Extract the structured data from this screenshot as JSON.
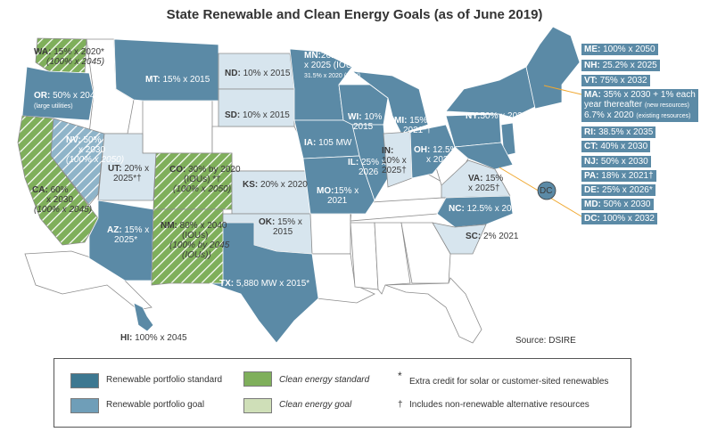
{
  "title": "State Renewable and Clean Energy Goals (as of June 2019)",
  "source": "Source: DSIRE",
  "colors": {
    "rps": "#3d7891",
    "rps_goal": "#6f9eb8",
    "ces": "#7faf5b",
    "ces_goal": "#cfdfb8",
    "no_policy": "#ffffff",
    "state_fill_main": "#5b8aa6",
    "state_fill_light": "#d7e5ee",
    "connector": "#f0a830"
  },
  "states": {
    "WA": {
      "abbr": "WA:",
      "text": "15% x 2020*",
      "text2": "(100% x 2045)"
    },
    "OR": {
      "abbr": "OR:",
      "text": "50% x 2040*",
      "text2": "(large utilities)"
    },
    "CA": {
      "abbr": "CA:",
      "text": "60%",
      "text2": "x 2030",
      "text3": "(100% x 2045)"
    },
    "NV": {
      "abbr": "NV:",
      "text": "50%",
      "text2": "x 2030",
      "text3": "(100% x 2050)"
    },
    "MT": {
      "abbr": "MT:",
      "text": "15% x 2015"
    },
    "UT": {
      "abbr": "UT:",
      "text": "20% x",
      "text2": "2025*†"
    },
    "CO": {
      "abbr": "CO:",
      "text": "30% by 2020",
      "text2": "(IOUs) *†",
      "text3": "(100% x 2050)"
    },
    "AZ": {
      "abbr": "AZ:",
      "text": "15% x",
      "text2": "2025*"
    },
    "NM": {
      "abbr": "NM:",
      "text": "80% x 2040",
      "text2": "(IOUs)",
      "text3": "(100% by 2045",
      "text4": "(IOUs))"
    },
    "ND": {
      "abbr": "ND:",
      "text": "10% x 2015"
    },
    "SD": {
      "abbr": "SD:",
      "text": "10% x 2015"
    },
    "KS": {
      "abbr": "KS:",
      "text": "20% x 2020"
    },
    "OK": {
      "abbr": "OK:",
      "text": "15% x",
      "text2": "2015"
    },
    "TX": {
      "abbr": "TX:",
      "text": "5,880 MW x 2015*"
    },
    "MN": {
      "abbr": "MN:",
      "text": "26.5%",
      "text2": "x 2025 (IOUs)",
      "text3": "31.5% x 2020 (Xcel)"
    },
    "IA": {
      "abbr": "IA:",
      "text": "105 MW"
    },
    "MO": {
      "abbr": "MO:",
      "text": "15% x",
      "text2": "2021"
    },
    "WI": {
      "abbr": "WI:",
      "text": "10%",
      "text2": "2015"
    },
    "IL": {
      "abbr": "IL:",
      "text": "25% x",
      "text2": "2026"
    },
    "MI": {
      "abbr": "MI:",
      "text": "15% x",
      "text2": "2021*†"
    },
    "IN": {
      "abbr": "IN:",
      "text": "10% x",
      "text2": "2025†"
    },
    "OH": {
      "abbr": "OH:",
      "text": "12.5%",
      "text2": "x 2026"
    },
    "NY": {
      "abbr": "NY:",
      "text": "50% x 2030"
    },
    "VA": {
      "abbr": "VA:",
      "text": "15%",
      "text2": "x 2025†"
    },
    "NC": {
      "abbr": "NC:",
      "text": "12.5% x 2021 (IOUs)"
    },
    "SC": {
      "abbr": "SC:",
      "text": "2% 2021"
    },
    "HI": {
      "abbr": "HI:",
      "text": "100% x 2045"
    },
    "DC": {
      "abbr": "DC"
    }
  },
  "northeast": [
    {
      "abbr": "ME:",
      "text": "100% x 2050"
    },
    {
      "abbr": "NH:",
      "text": "25.2% x 2025"
    },
    {
      "abbr": "VT:",
      "text": "75% x 2032"
    },
    {
      "abbr": "MA:",
      "text": "35% x 2030 + 1% each",
      "text2": "year thereafter",
      "tiny2": "(new resources)",
      "text3": "6.7% x 2020",
      "tiny3": "(existing resources)"
    },
    {
      "abbr": "RI:",
      "text": "38.5% x 2035"
    },
    {
      "abbr": "CT:",
      "text": "40% x 2030"
    },
    {
      "abbr": "NJ:",
      "text": "50% x 2030"
    },
    {
      "abbr": "PA:",
      "text": "18% x 2021†"
    },
    {
      "abbr": "DE:",
      "text": "25% x 2026*"
    },
    {
      "abbr": "MD:",
      "text": "50% x 2030"
    },
    {
      "abbr": "DC:",
      "text": "100% x 2032"
    }
  ],
  "legend": {
    "rps": "Renewable portfolio standard",
    "rps_goal": "Renewable portfolio goal",
    "ces": "Clean energy standard",
    "ces_goal": "Clean energy goal",
    "asterisk": "*",
    "extra_credit": "Extra credit for solar or customer-sited renewables",
    "dagger": "†",
    "non_renewable": "Includes non-renewable alternative resources"
  }
}
